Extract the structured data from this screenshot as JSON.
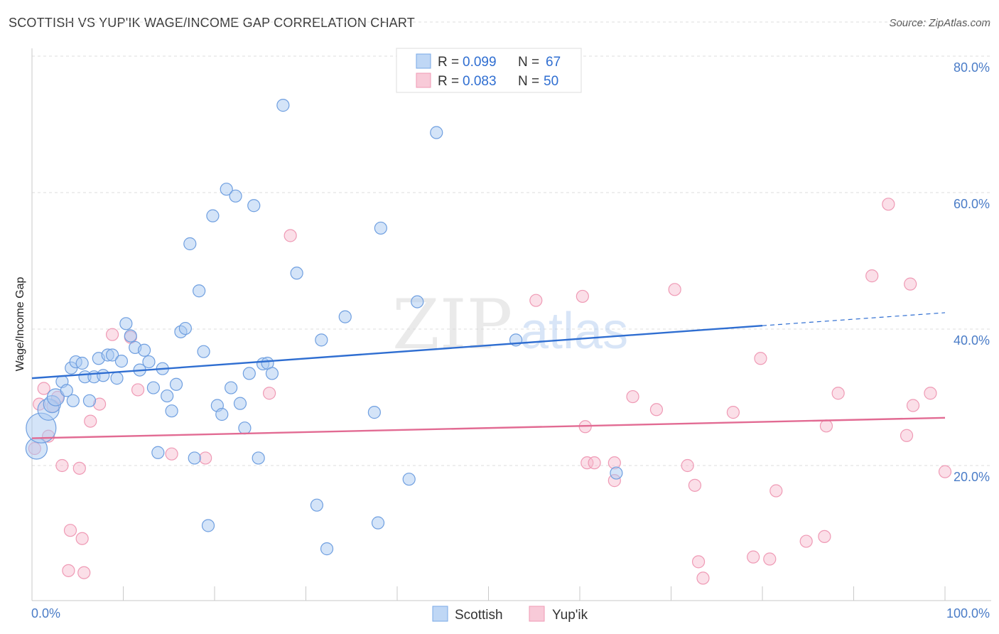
{
  "title": "SCOTTISH VS YUP'IK WAGE/INCOME GAP CORRELATION CHART",
  "source": "Source: ZipAtlas.com",
  "watermark": {
    "zip": "ZIP",
    "atlas": "atlas"
  },
  "legend": [
    {
      "r_label": "R =",
      "r_value": "0.099",
      "n_label": "N =",
      "n_value": "67"
    },
    {
      "r_label": "R =",
      "r_value": "0.083",
      "n_label": "N =",
      "n_value": "50"
    }
  ],
  "bottom_legend": [
    "Scottish",
    "Yup'ik"
  ],
  "chart_data": {
    "type": "scatter",
    "title": "SCOTTISH VS YUP'IK WAGE/INCOME GAP CORRELATION CHART",
    "xlabel": "",
    "ylabel": "Wage/Income Gap",
    "xlim": [
      0,
      100
    ],
    "ylim": [
      0,
      85
    ],
    "x_tick_labels": [
      "0.0%",
      "100.0%"
    ],
    "y_ticks": [
      20,
      40,
      60,
      80
    ],
    "y_tick_labels": [
      "20.0%",
      "40.0%",
      "60.0%",
      "80.0%"
    ],
    "grid": true,
    "legend_position": "top-center",
    "colors": {
      "Scottish": "#a9c9f2",
      "Scottish_line": "#2f6ed1",
      "Yup'ik": "#f6b8cb",
      "Yup'ik_line": "#e26b93"
    },
    "series": [
      {
        "name": "Scottish",
        "R": 0.099,
        "N": 67,
        "trend": {
          "x0": 0,
          "y0": 32.8,
          "x1": 80,
          "y1": 40.5,
          "dashed_to_x": 100,
          "dashed_to_y": 42.4
        },
        "points": [
          {
            "x": 0.5,
            "y": 22.5,
            "s": 3
          },
          {
            "x": 1,
            "y": 25.5,
            "s": 4
          },
          {
            "x": 1.8,
            "y": 28.2,
            "s": 3
          },
          {
            "x": 2.2,
            "y": 29.0,
            "s": 2
          },
          {
            "x": 2.6,
            "y": 30.0,
            "s": 2
          },
          {
            "x": 3.3,
            "y": 32.3,
            "s": 1
          },
          {
            "x": 3.8,
            "y": 31.0,
            "s": 1
          },
          {
            "x": 4.3,
            "y": 34.3,
            "s": 1
          },
          {
            "x": 4.5,
            "y": 29.5,
            "s": 1
          },
          {
            "x": 4.8,
            "y": 35.2,
            "s": 1
          },
          {
            "x": 5.5,
            "y": 35.0,
            "s": 1
          },
          {
            "x": 5.8,
            "y": 33.0,
            "s": 1
          },
          {
            "x": 6.3,
            "y": 29.5,
            "s": 1
          },
          {
            "x": 6.8,
            "y": 33.0,
            "s": 1
          },
          {
            "x": 7.3,
            "y": 35.7,
            "s": 1
          },
          {
            "x": 7.8,
            "y": 33.2,
            "s": 1
          },
          {
            "x": 8.3,
            "y": 36.2,
            "s": 1
          },
          {
            "x": 8.8,
            "y": 36.2,
            "s": 1
          },
          {
            "x": 9.3,
            "y": 32.8,
            "s": 1
          },
          {
            "x": 9.8,
            "y": 35.3,
            "s": 1
          },
          {
            "x": 10.3,
            "y": 40.8,
            "s": 1
          },
          {
            "x": 10.8,
            "y": 39.0,
            "s": 1
          },
          {
            "x": 11.3,
            "y": 37.3,
            "s": 1
          },
          {
            "x": 11.8,
            "y": 34.0,
            "s": 1
          },
          {
            "x": 12.3,
            "y": 36.9,
            "s": 1
          },
          {
            "x": 12.8,
            "y": 35.2,
            "s": 1
          },
          {
            "x": 13.3,
            "y": 31.4,
            "s": 1
          },
          {
            "x": 13.8,
            "y": 21.9,
            "s": 1
          },
          {
            "x": 14.3,
            "y": 34.2,
            "s": 1
          },
          {
            "x": 14.8,
            "y": 30.2,
            "s": 1
          },
          {
            "x": 15.3,
            "y": 28.0,
            "s": 1
          },
          {
            "x": 15.8,
            "y": 31.9,
            "s": 1
          },
          {
            "x": 16.3,
            "y": 39.6,
            "s": 1
          },
          {
            "x": 16.8,
            "y": 40.1,
            "s": 1
          },
          {
            "x": 17.3,
            "y": 52.5,
            "s": 1
          },
          {
            "x": 17.8,
            "y": 21.1,
            "s": 1
          },
          {
            "x": 18.3,
            "y": 45.6,
            "s": 1
          },
          {
            "x": 18.8,
            "y": 36.7,
            "s": 1
          },
          {
            "x": 19.3,
            "y": 11.2,
            "s": 1
          },
          {
            "x": 19.8,
            "y": 56.6,
            "s": 1
          },
          {
            "x": 20.3,
            "y": 28.8,
            "s": 1
          },
          {
            "x": 20.8,
            "y": 27.5,
            "s": 1
          },
          {
            "x": 21.3,
            "y": 60.5,
            "s": 1
          },
          {
            "x": 21.8,
            "y": 31.4,
            "s": 1
          },
          {
            "x": 22.3,
            "y": 59.5,
            "s": 1
          },
          {
            "x": 22.8,
            "y": 29.1,
            "s": 1
          },
          {
            "x": 23.3,
            "y": 25.5,
            "s": 1
          },
          {
            "x": 23.8,
            "y": 33.5,
            "s": 1
          },
          {
            "x": 24.3,
            "y": 58.1,
            "s": 1
          },
          {
            "x": 24.8,
            "y": 21.1,
            "s": 1
          },
          {
            "x": 25.3,
            "y": 34.9,
            "s": 1
          },
          {
            "x": 25.8,
            "y": 35.0,
            "s": 1
          },
          {
            "x": 26.3,
            "y": 33.5,
            "s": 1
          },
          {
            "x": 27.5,
            "y": 72.8,
            "s": 1
          },
          {
            "x": 29.0,
            "y": 48.2,
            "s": 1
          },
          {
            "x": 31.2,
            "y": 14.2,
            "s": 1
          },
          {
            "x": 31.7,
            "y": 38.4,
            "s": 1
          },
          {
            "x": 32.3,
            "y": 7.8,
            "s": 1
          },
          {
            "x": 34.3,
            "y": 41.8,
            "s": 1
          },
          {
            "x": 37.5,
            "y": 27.8,
            "s": 1
          },
          {
            "x": 37.9,
            "y": 11.6,
            "s": 1
          },
          {
            "x": 38.2,
            "y": 54.8,
            "s": 1
          },
          {
            "x": 42.2,
            "y": 44.0,
            "s": 1
          },
          {
            "x": 41.3,
            "y": 18.0,
            "s": 1
          },
          {
            "x": 44.3,
            "y": 68.8,
            "s": 1
          },
          {
            "x": 53.0,
            "y": 38.4,
            "s": 1
          },
          {
            "x": 64.0,
            "y": 18.9,
            "s": 1
          }
        ]
      },
      {
        "name": "Yup'ik",
        "R": 0.083,
        "N": 50,
        "trend": {
          "x0": 0,
          "y0": 24.0,
          "x1": 100,
          "y1": 27.0
        },
        "points": [
          {
            "x": 0.3,
            "y": 22.5,
            "s": 1
          },
          {
            "x": 0.8,
            "y": 29.0,
            "s": 1
          },
          {
            "x": 1.3,
            "y": 31.3,
            "s": 1
          },
          {
            "x": 1.8,
            "y": 24.3,
            "s": 1
          },
          {
            "x": 2.3,
            "y": 28.7,
            "s": 1
          },
          {
            "x": 2.8,
            "y": 30.0,
            "s": 1
          },
          {
            "x": 3.3,
            "y": 20.0,
            "s": 1
          },
          {
            "x": 4.2,
            "y": 10.5,
            "s": 1
          },
          {
            "x": 4.0,
            "y": 4.6,
            "s": 1
          },
          {
            "x": 5.2,
            "y": 19.6,
            "s": 1
          },
          {
            "x": 5.5,
            "y": 9.3,
            "s": 1
          },
          {
            "x": 5.7,
            "y": 4.3,
            "s": 1
          },
          {
            "x": 6.4,
            "y": 26.5,
            "s": 1
          },
          {
            "x": 7.4,
            "y": 29.0,
            "s": 1
          },
          {
            "x": 8.8,
            "y": 39.2,
            "s": 1
          },
          {
            "x": 10.8,
            "y": 38.8,
            "s": 1
          },
          {
            "x": 11.6,
            "y": 31.1,
            "s": 1
          },
          {
            "x": 15.3,
            "y": 21.7,
            "s": 1
          },
          {
            "x": 19.0,
            "y": 21.1,
            "s": 1
          },
          {
            "x": 26.0,
            "y": 30.6,
            "s": 1
          },
          {
            "x": 28.3,
            "y": 53.7,
            "s": 1
          },
          {
            "x": 55.2,
            "y": 44.2,
            "s": 1
          },
          {
            "x": 60.3,
            "y": 44.8,
            "s": 1
          },
          {
            "x": 60.6,
            "y": 25.7,
            "s": 1
          },
          {
            "x": 60.8,
            "y": 20.4,
            "s": 1
          },
          {
            "x": 61.6,
            "y": 20.4,
            "s": 1
          },
          {
            "x": 63.8,
            "y": 20.4,
            "s": 1
          },
          {
            "x": 63.8,
            "y": 17.8,
            "s": 1
          },
          {
            "x": 65.8,
            "y": 30.1,
            "s": 1
          },
          {
            "x": 68.4,
            "y": 28.2,
            "s": 1
          },
          {
            "x": 70.4,
            "y": 45.8,
            "s": 1
          },
          {
            "x": 71.8,
            "y": 20.0,
            "s": 1
          },
          {
            "x": 72.6,
            "y": 17.1,
            "s": 1
          },
          {
            "x": 73.0,
            "y": 5.9,
            "s": 1
          },
          {
            "x": 73.5,
            "y": 3.5,
            "s": 1
          },
          {
            "x": 76.8,
            "y": 27.8,
            "s": 1
          },
          {
            "x": 79.0,
            "y": 6.6,
            "s": 1
          },
          {
            "x": 79.8,
            "y": 35.7,
            "s": 1
          },
          {
            "x": 80.8,
            "y": 6.3,
            "s": 1
          },
          {
            "x": 81.5,
            "y": 16.3,
            "s": 1
          },
          {
            "x": 84.8,
            "y": 8.9,
            "s": 1
          },
          {
            "x": 87.0,
            "y": 25.8,
            "s": 1
          },
          {
            "x": 86.8,
            "y": 9.6,
            "s": 1
          },
          {
            "x": 88.3,
            "y": 30.6,
            "s": 1
          },
          {
            "x": 92.0,
            "y": 47.8,
            "s": 1
          },
          {
            "x": 93.8,
            "y": 58.3,
            "s": 1
          },
          {
            "x": 95.8,
            "y": 24.4,
            "s": 1
          },
          {
            "x": 96.2,
            "y": 46.6,
            "s": 1
          },
          {
            "x": 96.5,
            "y": 28.8,
            "s": 1
          },
          {
            "x": 98.4,
            "y": 30.6,
            "s": 1
          },
          {
            "x": 100,
            "y": 19.1,
            "s": 1
          }
        ]
      }
    ]
  }
}
